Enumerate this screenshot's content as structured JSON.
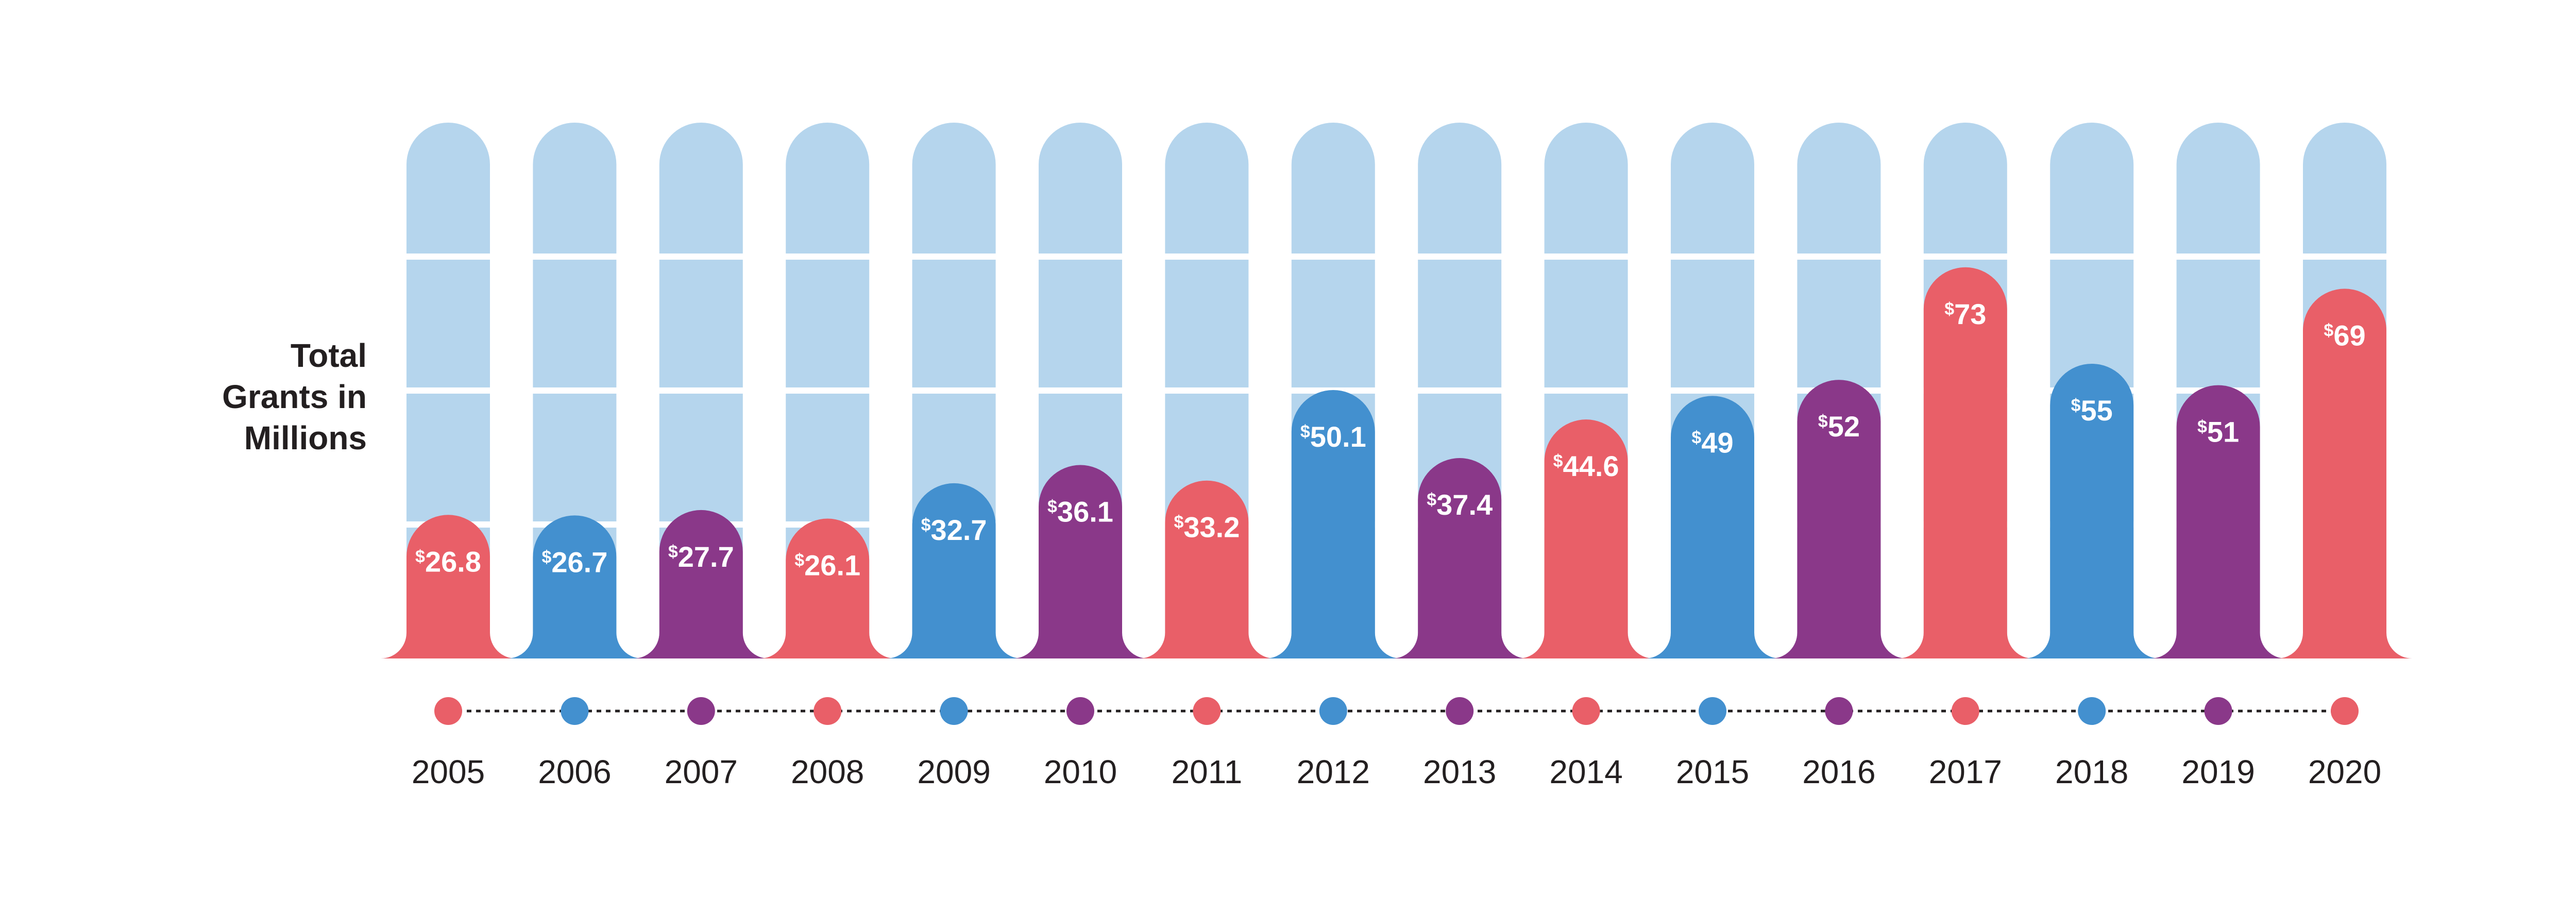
{
  "chart_data": {
    "type": "bar",
    "title": "",
    "ylabel": "Total Grants in Millions",
    "ylabel_lines": [
      "Total",
      "Grants in",
      "Millions"
    ],
    "xlabel": "",
    "currency_symbol": "$",
    "categories": [
      "2005",
      "2006",
      "2007",
      "2008",
      "2009",
      "2010",
      "2011",
      "2012",
      "2013",
      "2014",
      "2015",
      "2016",
      "2017",
      "2018",
      "2019",
      "2020"
    ],
    "values": [
      26.8,
      26.7,
      27.7,
      26.1,
      32.7,
      36.1,
      33.2,
      50.1,
      37.4,
      44.6,
      49,
      52,
      73,
      55,
      51,
      69
    ],
    "value_labels": [
      "26.8",
      "26.7",
      "27.7",
      "26.1",
      "32.7",
      "36.1",
      "33.2",
      "50.1",
      "37.4",
      "44.6",
      "49",
      "52",
      "73",
      "55",
      "51",
      "69"
    ],
    "bar_colors": [
      "#e95f68",
      "#4390cf",
      "#8a3889",
      "#e95f68",
      "#4390cf",
      "#8a3889",
      "#e95f68",
      "#4390cf",
      "#8a3889",
      "#e95f68",
      "#4390cf",
      "#8a3889",
      "#e95f68",
      "#4390cf",
      "#8a3889",
      "#e95f68"
    ],
    "background_bar_color": "#b5d5ed",
    "ylim": [
      0,
      100
    ],
    "grid_values": [
      25,
      50,
      75
    ],
    "legend": "none"
  }
}
